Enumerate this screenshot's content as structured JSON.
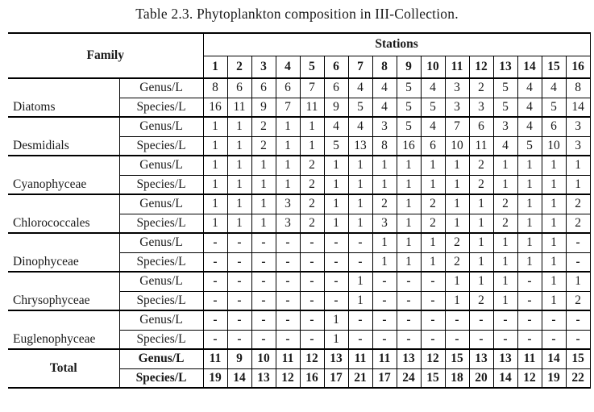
{
  "title": "Table 2.3. Phytoplankton composition in III-Collection.",
  "colors": {
    "background": "#ffffff",
    "text": "#1a1a1a",
    "border": "#000000"
  },
  "table": {
    "family_header": "Family",
    "stations_header": "Stations",
    "station_numbers": [
      "1",
      "2",
      "3",
      "4",
      "5",
      "6",
      "7",
      "8",
      "9",
      "10",
      "11",
      "12",
      "13",
      "14",
      "15",
      "16"
    ],
    "row_labels": {
      "genus": "Genus/L",
      "species": "Species/L"
    },
    "groups": [
      {
        "family": "Diatoms",
        "genus": [
          "8",
          "6",
          "6",
          "6",
          "7",
          "6",
          "4",
          "4",
          "5",
          "4",
          "3",
          "2",
          "5",
          "4",
          "4",
          "8"
        ],
        "species": [
          "16",
          "11",
          "9",
          "7",
          "11",
          "9",
          "5",
          "4",
          "5",
          "5",
          "3",
          "3",
          "5",
          "4",
          "5",
          "14"
        ]
      },
      {
        "family": "Desmidials",
        "genus": [
          "1",
          "1",
          "2",
          "1",
          "1",
          "4",
          "4",
          "3",
          "5",
          "4",
          "7",
          "6",
          "3",
          "4",
          "6",
          "3"
        ],
        "species": [
          "1",
          "1",
          "2",
          "1",
          "1",
          "5",
          "13",
          "8",
          "16",
          "6",
          "10",
          "11",
          "4",
          "5",
          "10",
          "3"
        ]
      },
      {
        "family": "Cyanophyceae",
        "genus": [
          "1",
          "1",
          "1",
          "1",
          "2",
          "1",
          "1",
          "1",
          "1",
          "1",
          "1",
          "2",
          "1",
          "1",
          "1",
          "1"
        ],
        "species": [
          "1",
          "1",
          "1",
          "1",
          "2",
          "1",
          "1",
          "1",
          "1",
          "1",
          "1",
          "2",
          "1",
          "1",
          "1",
          "1"
        ]
      },
      {
        "family": "Chlorococcales",
        "genus": [
          "1",
          "1",
          "1",
          "3",
          "2",
          "1",
          "1",
          "2",
          "1",
          "2",
          "1",
          "1",
          "2",
          "1",
          "1",
          "2"
        ],
        "species": [
          "1",
          "1",
          "1",
          "3",
          "2",
          "1",
          "1",
          "3",
          "1",
          "2",
          "1",
          "1",
          "2",
          "1",
          "1",
          "2"
        ]
      },
      {
        "family": "Dinophyceae",
        "genus": [
          "-",
          "-",
          "-",
          "-",
          "-",
          "-",
          "-",
          "1",
          "1",
          "1",
          "2",
          "1",
          "1",
          "1",
          "1",
          "-"
        ],
        "species": [
          "-",
          "-",
          "-",
          "-",
          "-",
          "-",
          "-",
          "1",
          "1",
          "1",
          "2",
          "1",
          "1",
          "1",
          "1",
          "-"
        ]
      },
      {
        "family": "Chrysophyceae",
        "genus": [
          "-",
          "-",
          "-",
          "-",
          "-",
          "-",
          "1",
          "-",
          "-",
          "-",
          "1",
          "1",
          "1",
          "-",
          "1",
          "1"
        ],
        "species": [
          "-",
          "-",
          "-",
          "-",
          "-",
          "-",
          "1",
          "-",
          "-",
          "-",
          "1",
          "2",
          "1",
          "-",
          "1",
          "2"
        ]
      },
      {
        "family": "Euglenophyceae",
        "genus": [
          "-",
          "-",
          "-",
          "-",
          "-",
          "1",
          "-",
          "-",
          "-",
          "-",
          "-",
          "-",
          "-",
          "-",
          "-",
          "-"
        ],
        "species": [
          "-",
          "-",
          "-",
          "-",
          "-",
          "1",
          "-",
          "-",
          "-",
          "-",
          "-",
          "-",
          "-",
          "-",
          "-",
          "-"
        ]
      },
      {
        "family": "Total",
        "is_total": true,
        "genus": [
          "11",
          "9",
          "10",
          "11",
          "12",
          "13",
          "11",
          "11",
          "13",
          "12",
          "15",
          "13",
          "13",
          "11",
          "14",
          "15"
        ],
        "species": [
          "19",
          "14",
          "13",
          "12",
          "16",
          "17",
          "21",
          "17",
          "24",
          "15",
          "18",
          "20",
          "14",
          "12",
          "19",
          "22"
        ]
      }
    ]
  }
}
